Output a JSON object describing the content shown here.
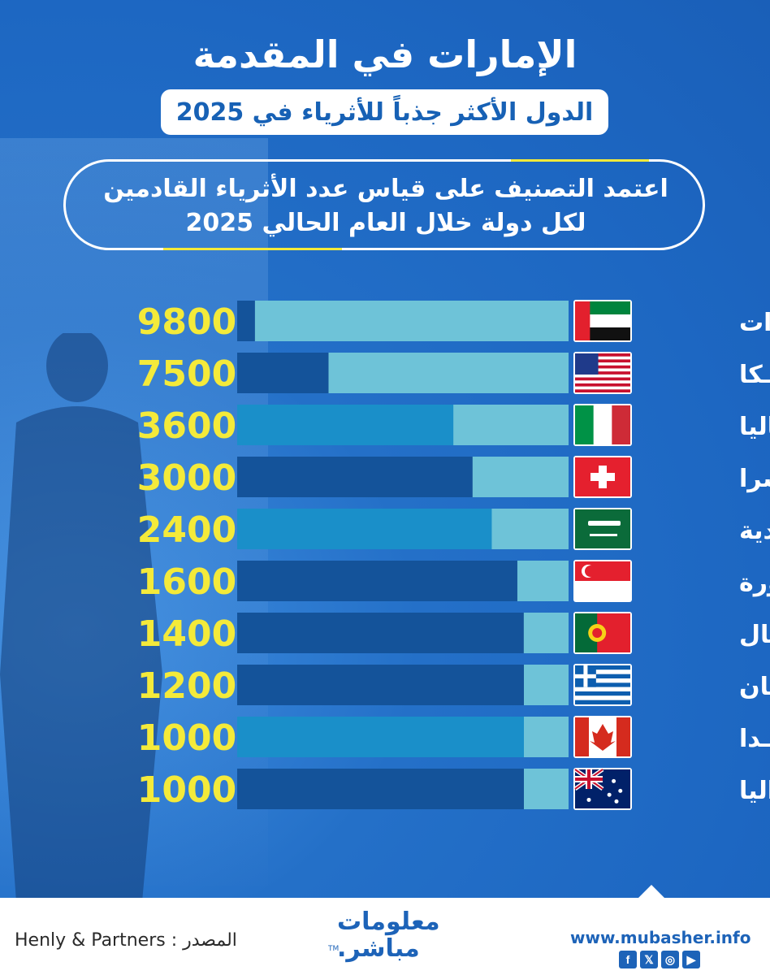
{
  "header": {
    "title": "الإمارات في المقدمة",
    "subtitle": "الدول الأكثر جذباً للأثرياء في 2025",
    "note_line1": "اعتمد التصنيف على قياس عدد الأثرياء القادمين",
    "note_line2": "لكل دولة خلال العام الحالي 2025"
  },
  "chart_data": {
    "type": "bar",
    "orientation": "horizontal",
    "categories": [
      "الإمـــارات",
      "أمريـــكا",
      "إيطـــاليا",
      "سويـــسرا",
      "السعودية",
      "سنغافورة",
      "البرتـــغال",
      "اليونـــان",
      "كنـــدا",
      "أســـتراليا"
    ],
    "values": [
      9800,
      7500,
      3600,
      3000,
      2400,
      1600,
      1400,
      1200,
      1000,
      1000
    ],
    "value_labels": [
      "9800",
      "7500",
      "3600",
      "3000",
      "2400",
      "1600",
      "1400",
      "1200",
      "1000",
      "1000"
    ],
    "flags": [
      "uae-flag-icon",
      "usa-flag-icon",
      "italy-flag-icon",
      "switzerland-flag-icon",
      "saudi-flag-icon",
      "singapore-flag-icon",
      "portugal-flag-icon",
      "greece-flag-icon",
      "canada-flag-icon",
      "australia-flag-icon"
    ],
    "xlim": [
      0,
      10000
    ],
    "grid": false,
    "colors": {
      "bar_fill": "#6ec3d8",
      "track_dark": "#14539a",
      "track_mid": "#1a8fc9",
      "value_text": "#f4ea3a",
      "label_text": "#ffffff"
    }
  },
  "footer": {
    "source": "Henly & Partners : المصدر",
    "logo_line1": "معلومات",
    "logo_line2": "مباشر.",
    "logo_tm": "TM",
    "website": "www.mubasher.info",
    "social_icons": [
      "facebook-icon",
      "x-icon",
      "instagram-icon",
      "youtube-icon"
    ],
    "social_glyphs": [
      "f",
      "𝕏",
      "◎",
      "▶"
    ]
  }
}
